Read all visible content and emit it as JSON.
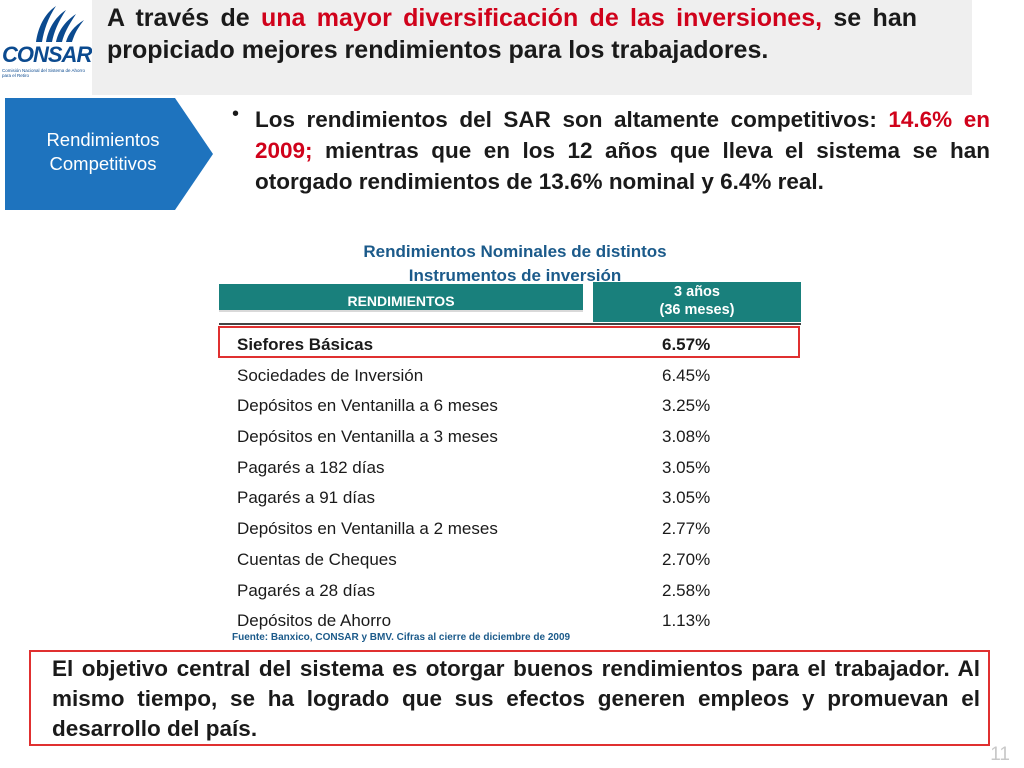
{
  "logo": {
    "text": "CONSAR",
    "subtext": "Comisión Nacional del Sistema de Ahorro para el Retiro",
    "color": "#0b4a8f"
  },
  "title": {
    "part1": "A través de ",
    "part2_red": "una mayor diversificación de las inversiones,",
    "part3": " se han propiciado mejores rendimientos para los trabajadores."
  },
  "tag": {
    "label": "Rendimientos Competitivos",
    "color": "#1e73be"
  },
  "bullet": {
    "symbol": "•",
    "part1": "Los rendimientos del SAR son altamente competitivos: ",
    "part2_red": "14.6% en 2009;",
    "part3": " mientras que en  los 12 años que lleva el sistema se han otorgado rendimientos de 13.6% nominal y 6.4% real."
  },
  "table": {
    "title_line1": "Rendimientos Nominales de distintos",
    "title_line2": "Instrumentos de inversión",
    "header_left": "RENDIMIENTOS",
    "header_right_line1": "3 años",
    "header_right_line2": "(36 meses)",
    "header_color": "#19807c",
    "rows": [
      {
        "name": "Siefores Básicas",
        "value": "6.57%"
      },
      {
        "name": "Sociedades de Inversión",
        "value": "6.45%"
      },
      {
        "name": "Depósitos en Ventanilla a 6 meses",
        "value": "3.25%"
      },
      {
        "name": "Depósitos en Ventanilla a 3 meses",
        "value": "3.08%"
      },
      {
        "name": "Pagarés a 182 días",
        "value": "3.05%"
      },
      {
        "name": "Pagarés a 91 días",
        "value": "3.05%"
      },
      {
        "name": "Depósitos en Ventanilla a 2 meses",
        "value": "2.77%"
      },
      {
        "name": "Cuentas de Cheques",
        "value": "2.70%"
      },
      {
        "name": "Pagarés a 28 días",
        "value": "2.58%"
      },
      {
        "name": "Depósitos de Ahorro",
        "value": "1.13%"
      }
    ],
    "source": "Fuente: Banxico, CONSAR y BMV.   Cifras al cierre de  diciembre de 2009"
  },
  "callout": {
    "text": "El objetivo central del sistema es otorgar buenos rendimientos para el trabajador. Al mismo tiempo, se ha logrado que sus efectos generen empleos y promuevan el desarrollo del país."
  },
  "page_number": "11",
  "colors": {
    "accent_red": "#d0021b",
    "highlight_border": "#e03030",
    "title_blue": "#1b5a8a"
  }
}
